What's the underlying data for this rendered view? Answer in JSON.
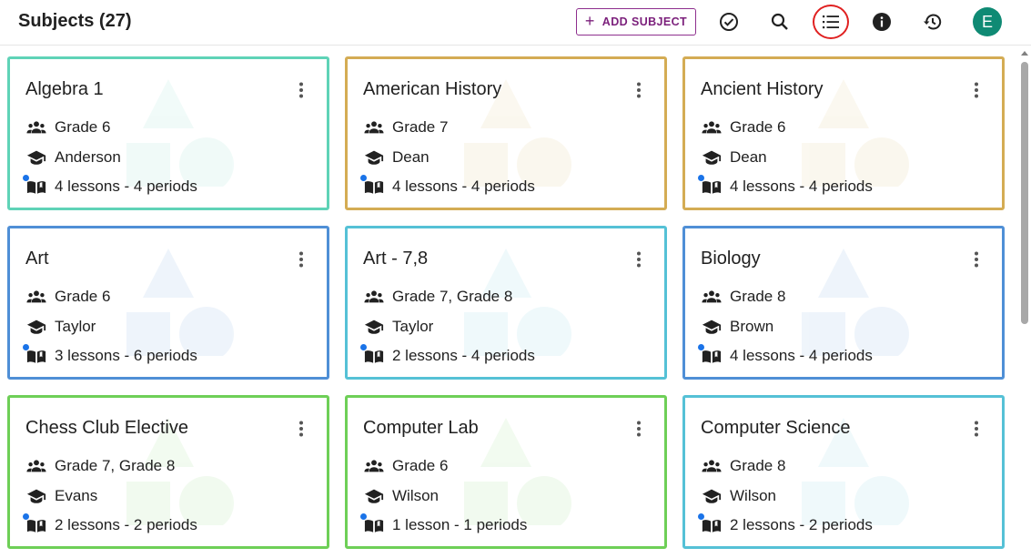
{
  "header": {
    "title": "Subjects (27)",
    "add_subject_label": "ADD SUBJECT",
    "icons": [
      "check-circle-icon",
      "search-icon",
      "list-view-icon",
      "info-icon",
      "history-icon"
    ],
    "avatar_letter": "E",
    "avatar_color": "#0f8a74",
    "brand_color": "#7b1f7b"
  },
  "subjects": [
    {
      "name": "Algebra 1",
      "grades": "Grade 6",
      "teacher": "Anderson",
      "schedule": "4 lessons - 4 periods",
      "color": "#5fd3b7"
    },
    {
      "name": "American History",
      "grades": "Grade 7",
      "teacher": "Dean",
      "schedule": "4 lessons - 4 periods",
      "color": "#d4ac54"
    },
    {
      "name": "Ancient History",
      "grades": "Grade 6",
      "teacher": "Dean",
      "schedule": "4 lessons - 4 periods",
      "color": "#d4ac54"
    },
    {
      "name": "Art",
      "grades": "Grade 6",
      "teacher": "Taylor",
      "schedule": "3 lessons - 6 periods",
      "color": "#4f8fd6"
    },
    {
      "name": "Art - 7,8",
      "grades": "Grade 7, Grade 8",
      "teacher": "Taylor",
      "schedule": "2 lessons - 4 periods",
      "color": "#55c1d6"
    },
    {
      "name": "Biology",
      "grades": "Grade 8",
      "teacher": "Brown",
      "schedule": "4 lessons - 4 periods",
      "color": "#4f8fd6"
    },
    {
      "name": "Chess Club Elective",
      "grades": "Grade 7, Grade 8",
      "teacher": "Evans",
      "schedule": "2 lessons - 2 periods",
      "color": "#6ecf57"
    },
    {
      "name": "Computer Lab",
      "grades": "Grade 6",
      "teacher": "Wilson",
      "schedule": "1 lesson - 1 periods",
      "color": "#6ecf57"
    },
    {
      "name": "Computer Science",
      "grades": "Grade 8",
      "teacher": "Wilson",
      "schedule": "2 lessons - 2 periods",
      "color": "#55c1d6"
    }
  ]
}
